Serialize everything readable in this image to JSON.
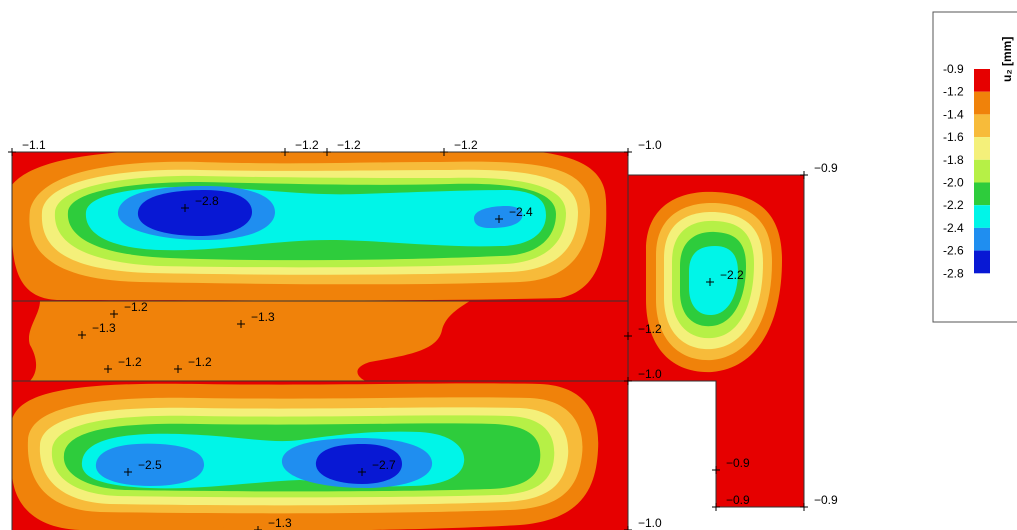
{
  "legend": {
    "unit_label": "u₂ [mm]",
    "levels": [
      {
        "label": "-0.9",
        "color": "#e60000"
      },
      {
        "label": "-1.2",
        "color": "#f0820a"
      },
      {
        "label": "-1.4",
        "color": "#f7bb3a"
      },
      {
        "label": "-1.6",
        "color": "#f4f07a"
      },
      {
        "label": "-1.8",
        "color": "#b6f046"
      },
      {
        "label": "-2.0",
        "color": "#2ecc3c"
      },
      {
        "label": "-2.2",
        "color": "#00f5e8"
      },
      {
        "label": "-2.4",
        "color": "#1f8ef0"
      },
      {
        "label": "-2.6",
        "color": "#0818d4"
      },
      {
        "label": "-2.8",
        "color": ""
      }
    ]
  },
  "point_labels": [
    {
      "id": "p1",
      "text": "-1.1"
    },
    {
      "id": "p2",
      "text": "-1.2"
    },
    {
      "id": "p3",
      "text": "-1.2"
    },
    {
      "id": "p4",
      "text": "-1.2"
    },
    {
      "id": "p5",
      "text": "-1.0"
    },
    {
      "id": "p6",
      "text": "-0.9"
    },
    {
      "id": "p7",
      "text": "-2.8"
    },
    {
      "id": "p8",
      "text": "-2.4"
    },
    {
      "id": "p9",
      "text": "-2.2"
    },
    {
      "id": "p10",
      "text": "-1.2"
    },
    {
      "id": "p11",
      "text": "-1.3"
    },
    {
      "id": "p12",
      "text": "-1.3"
    },
    {
      "id": "p13",
      "text": "-1.2"
    },
    {
      "id": "p14",
      "text": "-1.2"
    },
    {
      "id": "p15",
      "text": "-1.2"
    },
    {
      "id": "p16",
      "text": "-1.0"
    },
    {
      "id": "p17",
      "text": "-2.5"
    },
    {
      "id": "p18",
      "text": "-2.7"
    },
    {
      "id": "p19",
      "text": "-0.9"
    },
    {
      "id": "p20",
      "text": "-0.9"
    },
    {
      "id": "p21",
      "text": "-0.9"
    },
    {
      "id": "p22",
      "text": "-1.3"
    },
    {
      "id": "p23",
      "text": "-1.0"
    }
  ]
}
